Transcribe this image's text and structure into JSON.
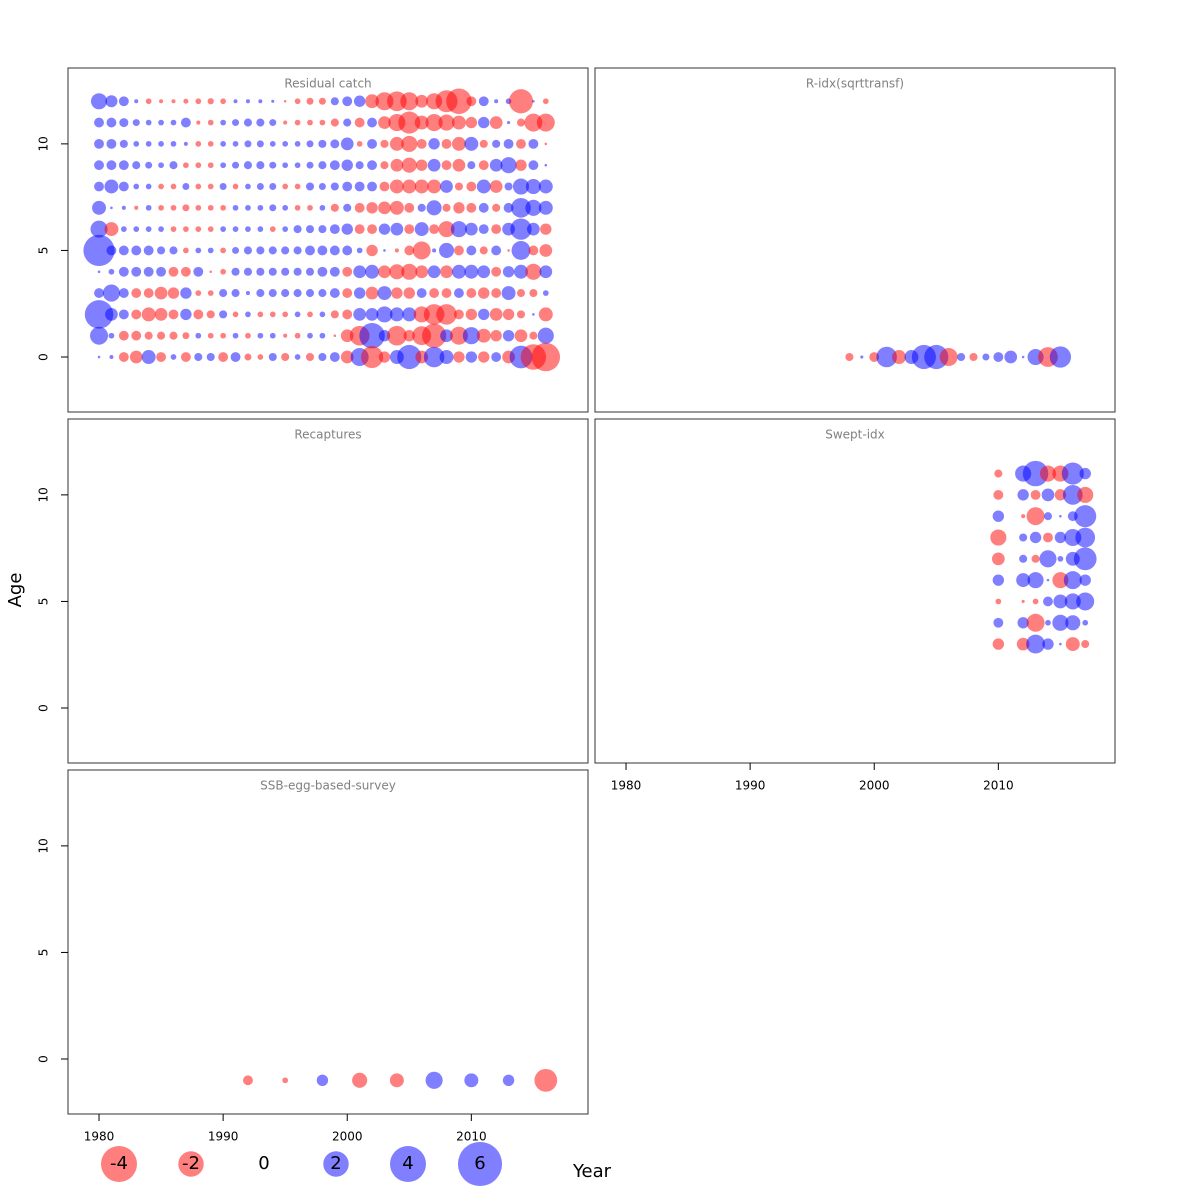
{
  "chart_data": [
    {
      "type": "bubble",
      "title": "Residual catch",
      "years": [
        1980,
        1981,
        1982,
        1983,
        1984,
        1985,
        1986,
        1987,
        1988,
        1989,
        1990,
        1991,
        1992,
        1993,
        1994,
        1995,
        1996,
        1997,
        1998,
        1999,
        2000,
        2001,
        2002,
        2003,
        2004,
        2005,
        2006,
        2007,
        2008,
        2009,
        2010,
        2011,
        2012,
        2013,
        2014,
        2015,
        2016
      ],
      "ages": [
        12,
        11,
        10,
        9,
        8,
        7,
        6,
        5,
        4,
        3,
        2,
        1,
        0
      ],
      "values": [
        [
          0.8,
          0.45,
          0.3,
          0.05,
          -0.1,
          -0.05,
          -0.05,
          -0.08,
          -0.1,
          -0.12,
          -0.1,
          0.05,
          0.05,
          0.05,
          0.03,
          -0.02,
          -0.1,
          -0.15,
          -0.15,
          0.2,
          0.3,
          0.4,
          -0.6,
          -1.0,
          -1.2,
          -1.0,
          -0.5,
          -0.8,
          -1.5,
          -2.0,
          -0.3,
          0.3,
          0.05,
          0.1,
          -1.8,
          0.02,
          -0.1
        ],
        [
          0.3,
          0.3,
          0.25,
          0.15,
          0.1,
          0.1,
          0.1,
          0.3,
          -0.05,
          -0.1,
          0.1,
          0.15,
          0.2,
          0.2,
          0.15,
          -0.05,
          -0.1,
          -0.1,
          -0.1,
          -0.2,
          0.2,
          -0.3,
          0.3,
          -0.5,
          -0.9,
          -1.5,
          -0.6,
          -0.9,
          -0.8,
          -0.6,
          -0.4,
          0.4,
          -0.5,
          0.03,
          -0.2,
          -1.0,
          -1.0
        ],
        [
          0.3,
          0.3,
          0.2,
          0.1,
          0.1,
          0.1,
          0.1,
          0.05,
          -0.1,
          -0.1,
          0.1,
          0.1,
          0.15,
          0.15,
          0.1,
          0.1,
          0.1,
          0.15,
          0.2,
          0.25,
          0.5,
          -0.1,
          0.3,
          -0.2,
          -0.6,
          -0.8,
          -0.3,
          0.4,
          -0.3,
          -0.6,
          0.6,
          -0.2,
          0.2,
          0.3,
          -0.3,
          0.3,
          -0.02
        ],
        [
          0.3,
          0.3,
          0.3,
          0.2,
          0.15,
          0.1,
          0.2,
          -0.1,
          -0.1,
          -0.1,
          0.1,
          0.15,
          0.2,
          0.2,
          0.15,
          0.1,
          0.1,
          0.15,
          0.2,
          0.3,
          0.4,
          0.2,
          0.3,
          -0.2,
          -0.5,
          -0.7,
          -0.4,
          0.5,
          -0.3,
          -0.5,
          0.2,
          -0.3,
          0.5,
          0.8,
          -0.4,
          0.3,
          0.02
        ],
        [
          0.3,
          0.6,
          0.3,
          0.1,
          0.1,
          -0.1,
          -0.1,
          0.15,
          -0.1,
          -0.1,
          0.15,
          -0.1,
          0.1,
          0.15,
          0.15,
          -0.1,
          -0.1,
          0.2,
          0.15,
          0.2,
          0.3,
          0.3,
          0.3,
          -0.3,
          -0.6,
          -0.6,
          -0.6,
          -0.6,
          0.5,
          -0.2,
          -0.3,
          0.6,
          -0.5,
          0.2,
          0.8,
          0.7,
          0.6
        ],
        [
          0.6,
          0.02,
          0.05,
          -0.05,
          0.1,
          -0.1,
          -0.1,
          -0.15,
          -0.1,
          -0.1,
          -0.1,
          0.1,
          0.1,
          0.1,
          0.15,
          0.1,
          -0.1,
          -0.1,
          0.1,
          -0.2,
          0.2,
          -0.3,
          -0.4,
          -0.5,
          -0.6,
          -0.3,
          0.2,
          0.7,
          -0.2,
          -0.4,
          -0.3,
          0.3,
          -0.2,
          0.3,
          1.2,
          0.8,
          0.6
        ],
        [
          0.9,
          -0.6,
          0.1,
          0.1,
          0.1,
          0.1,
          -0.1,
          -0.1,
          -0.1,
          -0.1,
          0.1,
          0.1,
          0.1,
          0.1,
          -0.1,
          0.1,
          0.2,
          0.2,
          0.2,
          0.3,
          0.4,
          -0.3,
          -0.3,
          0.4,
          0.5,
          -0.3,
          0.6,
          -0.3,
          -0.8,
          0.8,
          0.5,
          0.3,
          -0.3,
          0.5,
          1.4,
          0.5,
          -0.4
        ],
        [
          3.0,
          0.3,
          0.3,
          0.3,
          0.3,
          0.2,
          0.2,
          -0.1,
          0.1,
          0.1,
          -0.1,
          0.15,
          0.2,
          0.2,
          0.2,
          0.2,
          0.2,
          0.3,
          0.3,
          0.3,
          0.3,
          0.1,
          -0.4,
          0.02,
          -0.05,
          -0.3,
          -1.0,
          0.05,
          0.7,
          -0.3,
          0.3,
          -0.2,
          0.3,
          -0.02,
          1.1,
          -0.3,
          -0.5
        ],
        [
          0.02,
          0.1,
          0.3,
          0.3,
          0.3,
          0.3,
          -0.3,
          -0.3,
          0.3,
          -0.02,
          -0.1,
          0.2,
          0.2,
          0.2,
          0.2,
          0.2,
          0.2,
          0.2,
          0.3,
          0.3,
          -0.3,
          0.5,
          0.6,
          -0.5,
          -0.7,
          -0.8,
          -0.5,
          0.5,
          -0.5,
          0.6,
          0.6,
          0.5,
          -0.3,
          0.4,
          0.6,
          -0.8,
          0.5
        ],
        [
          0.3,
          0.9,
          0.3,
          -0.3,
          -0.3,
          -0.5,
          -0.4,
          0.4,
          -0.1,
          -0.1,
          0.2,
          0.2,
          0.05,
          0.2,
          0.2,
          0.2,
          0.2,
          0.2,
          0.2,
          0.3,
          -0.3,
          0.4,
          -0.5,
          0.6,
          -0.4,
          -0.4,
          0.3,
          -0.3,
          -0.3,
          0.3,
          -0.3,
          -0.4,
          -0.3,
          0.6,
          -0.2,
          -0.2,
          0.1
        ],
        [
          2.5,
          0.5,
          0.3,
          -0.3,
          -0.6,
          -0.5,
          -0.3,
          0.4,
          -0.3,
          -0.2,
          0.2,
          -0.1,
          0.1,
          -0.1,
          -0.1,
          -0.1,
          0.1,
          -0.1,
          0.1,
          -0.2,
          -0.3,
          0.5,
          0.5,
          0.8,
          0.6,
          0.6,
          -0.8,
          -1.3,
          -1.3,
          -0.3,
          -0.4,
          0.4,
          -0.5,
          -0.4,
          -0.2,
          0.02,
          -0.6
        ],
        [
          1.0,
          0.1,
          -0.3,
          -0.3,
          -0.2,
          -0.2,
          -0.2,
          -0.15,
          0.1,
          -0.1,
          -0.1,
          0.1,
          -0.1,
          0.1,
          0.1,
          -0.05,
          -0.1,
          0.1,
          0.1,
          -0.02,
          -0.5,
          -1.2,
          2.0,
          0.4,
          -1.2,
          -0.4,
          -1.1,
          -1.8,
          0.5,
          -1.0,
          0.9,
          -0.6,
          -0.4,
          0.4,
          -0.5,
          -0.2,
          0.8
        ],
        [
          0.02,
          0.05,
          -0.3,
          -0.5,
          0.6,
          -0.3,
          0.1,
          -0.3,
          0.2,
          0.2,
          -0.3,
          0.3,
          -0.15,
          -0.1,
          0.2,
          -0.2,
          0.1,
          -0.2,
          0.2,
          0.3,
          -0.5,
          1.0,
          -1.5,
          -0.4,
          0.6,
          1.8,
          -0.5,
          1.3,
          0.6,
          -0.4,
          0.4,
          -0.4,
          0.3,
          -0.5,
          1.6,
          -2.0,
          -2.5
        ]
      ]
    },
    {
      "type": "bubble",
      "title": "R-idx(sqrttransf)",
      "years": [
        1998,
        1999,
        2000,
        2001,
        2002,
        2003,
        2004,
        2005,
        2006,
        2007,
        2008,
        2009,
        2010,
        2011,
        2012,
        2013,
        2014,
        2015
      ],
      "ages": [
        0
      ],
      "values": [
        [
          -0.2,
          0.03,
          -0.3,
          1.3,
          -0.6,
          0.6,
          1.8,
          1.8,
          -1.0,
          0.2,
          -0.2,
          0.15,
          0.3,
          0.5,
          0.02,
          0.8,
          -1.2,
          1.4
        ]
      ]
    },
    {
      "type": "bubble",
      "title": "Recaptures",
      "years": [],
      "ages": [],
      "values": []
    },
    {
      "type": "bubble",
      "title": "Swept-idx",
      "years": [
        2010,
        2011,
        2012,
        2013,
        2014,
        2015,
        2016,
        2017
      ],
      "ages": [
        11,
        10,
        9,
        8,
        7,
        6,
        5,
        4,
        3
      ],
      "values": [
        [
          -0.2,
          null,
          0.8,
          2.0,
          -0.8,
          -0.8,
          1.5,
          0.4
        ],
        [
          -0.3,
          null,
          0.4,
          -0.3,
          0.5,
          -0.4,
          1.2,
          -0.8
        ],
        [
          0.4,
          null,
          -0.05,
          -1.0,
          0.2,
          0.02,
          0.3,
          1.5
        ],
        [
          -0.8,
          null,
          0.2,
          0.4,
          -0.3,
          0.4,
          0.9,
          1.2
        ],
        [
          -0.5,
          null,
          0.2,
          -0.2,
          0.9,
          0.1,
          0.6,
          1.6
        ],
        [
          0.4,
          null,
          0.6,
          0.8,
          0.02,
          -0.8,
          1.0,
          0.4
        ],
        [
          -0.1,
          null,
          -0.03,
          -0.1,
          0.3,
          0.6,
          0.8,
          1.0
        ],
        [
          0.3,
          null,
          0.4,
          -1.0,
          0.1,
          0.8,
          0.7,
          0.1
        ],
        [
          -0.4,
          null,
          -0.5,
          1.1,
          0.4,
          0.02,
          -0.6,
          -0.2
        ]
      ]
    },
    {
      "type": "bubble",
      "title": "SSB-egg-based-survey",
      "years": [
        1992,
        1995,
        1998,
        2001,
        2004,
        2007,
        2010,
        2013,
        2016
      ],
      "ages": [
        -1
      ],
      "values": [
        [
          -0.3,
          -0.1,
          0.4,
          -0.7,
          -0.6,
          0.9,
          0.6,
          0.4,
          -1.6
        ]
      ]
    }
  ],
  "axes": {
    "xlim": [
      1977.5,
      2019.4
    ],
    "ylim": [
      -2.58,
      13.56
    ],
    "xticks": [
      1980,
      1990,
      2000,
      2010
    ],
    "yticks": [
      0,
      5,
      10
    ]
  },
  "colors": {
    "positive": "#0000ff",
    "negative": "#ff0000"
  },
  "x_label": "Year",
  "y_label": "Age",
  "legend": {
    "values": [
      -4,
      -2,
      0,
      2,
      4,
      6
    ]
  }
}
